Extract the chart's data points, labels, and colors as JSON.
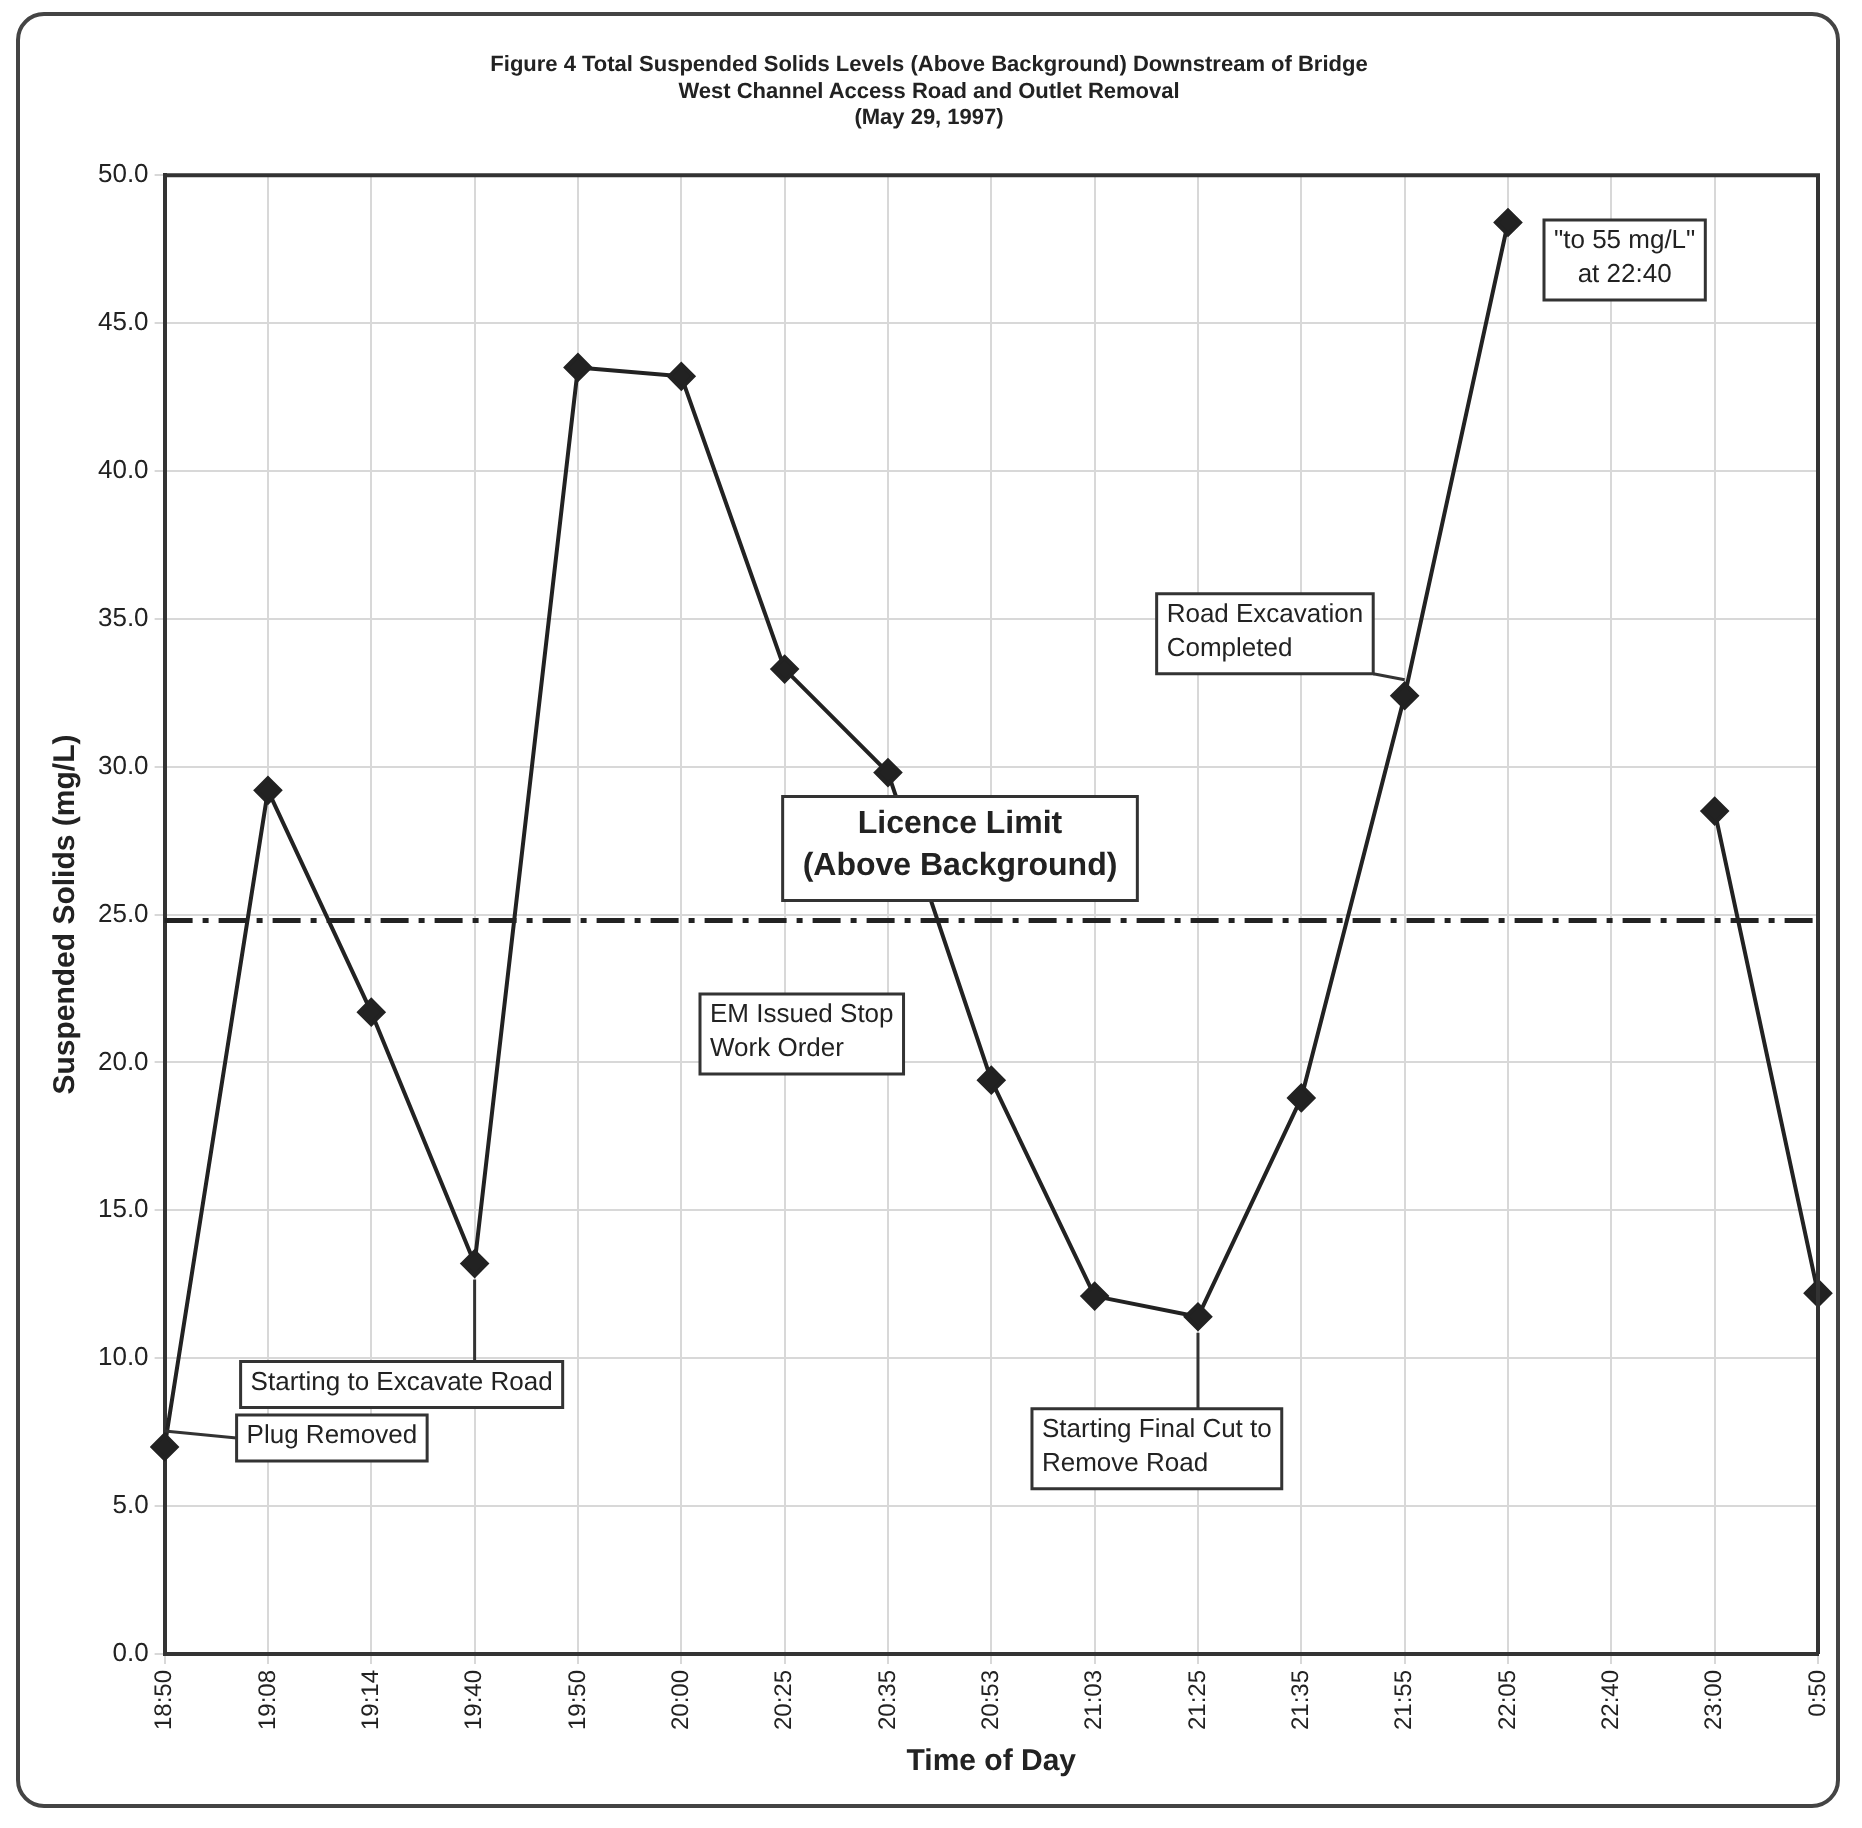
{
  "chart_data": {
    "type": "line",
    "title": "Figure 4 Total Suspended Solids Levels (Above Background) Downstream of Bridge\nWest Channel Access Road and Outlet Removal\n(May 29, 1997)",
    "xlabel": "Time of Day",
    "ylabel": "Suspended Solids (mg/L)",
    "categories": [
      "18:50",
      "19:08",
      "19:14",
      "19:40",
      "19:50",
      "20:00",
      "20:25",
      "20:35",
      "20:53",
      "21:03",
      "21:25",
      "21:35",
      "21:55",
      "22:05",
      "22:40",
      "23:00",
      "0:50"
    ],
    "series": [
      {
        "color": "#222222",
        "values": [
          7.0,
          29.2,
          21.7,
          13.2,
          43.5,
          43.2,
          33.3,
          29.8,
          19.4,
          12.1,
          11.4,
          18.8,
          32.4,
          48.4,
          null,
          28.5,
          12.2
        ]
      }
    ],
    "ylim": [
      0,
      50
    ],
    "yticks": [
      {
        "value": 0,
        "label": "0.0"
      },
      {
        "value": 5,
        "label": "5.0"
      },
      {
        "value": 10,
        "label": "10.0"
      },
      {
        "value": 15,
        "label": "15.0"
      },
      {
        "value": 20,
        "label": "20.0"
      },
      {
        "value": 25,
        "label": "25.0"
      },
      {
        "value": 30,
        "label": "30.0"
      },
      {
        "value": 35,
        "label": "35.0"
      },
      {
        "value": 40,
        "label": "40.0"
      },
      {
        "value": 45,
        "label": "45.0"
      },
      {
        "value": 50,
        "label": "50.0"
      }
    ],
    "grid": true,
    "legend": false,
    "marker": "diamond",
    "line_style": "solid",
    "ref_lines": [
      {
        "axis": "y",
        "value": 24.8,
        "label": "Licence Limit\n(Above Background)",
        "color": "#222222",
        "line_style": "dashdot"
      }
    ],
    "annotations": [
      {
        "text": "Plug Removed",
        "x": "18:50",
        "y": 7.0
      },
      {
        "text": "Starting to Excavate Road",
        "x": "19:40",
        "y": 13.2
      },
      "EM Issued Stop\nWork Order",
      {
        "text": "Starting Final Cut to\nRemove Road",
        "x": "21:25",
        "y": 11.4
      },
      {
        "text": "Road Excavation\nCompleted",
        "x": "21:55",
        "y": 32.4
      },
      "\"to 55 mg/L\"\nat 22:40"
    ]
  }
}
